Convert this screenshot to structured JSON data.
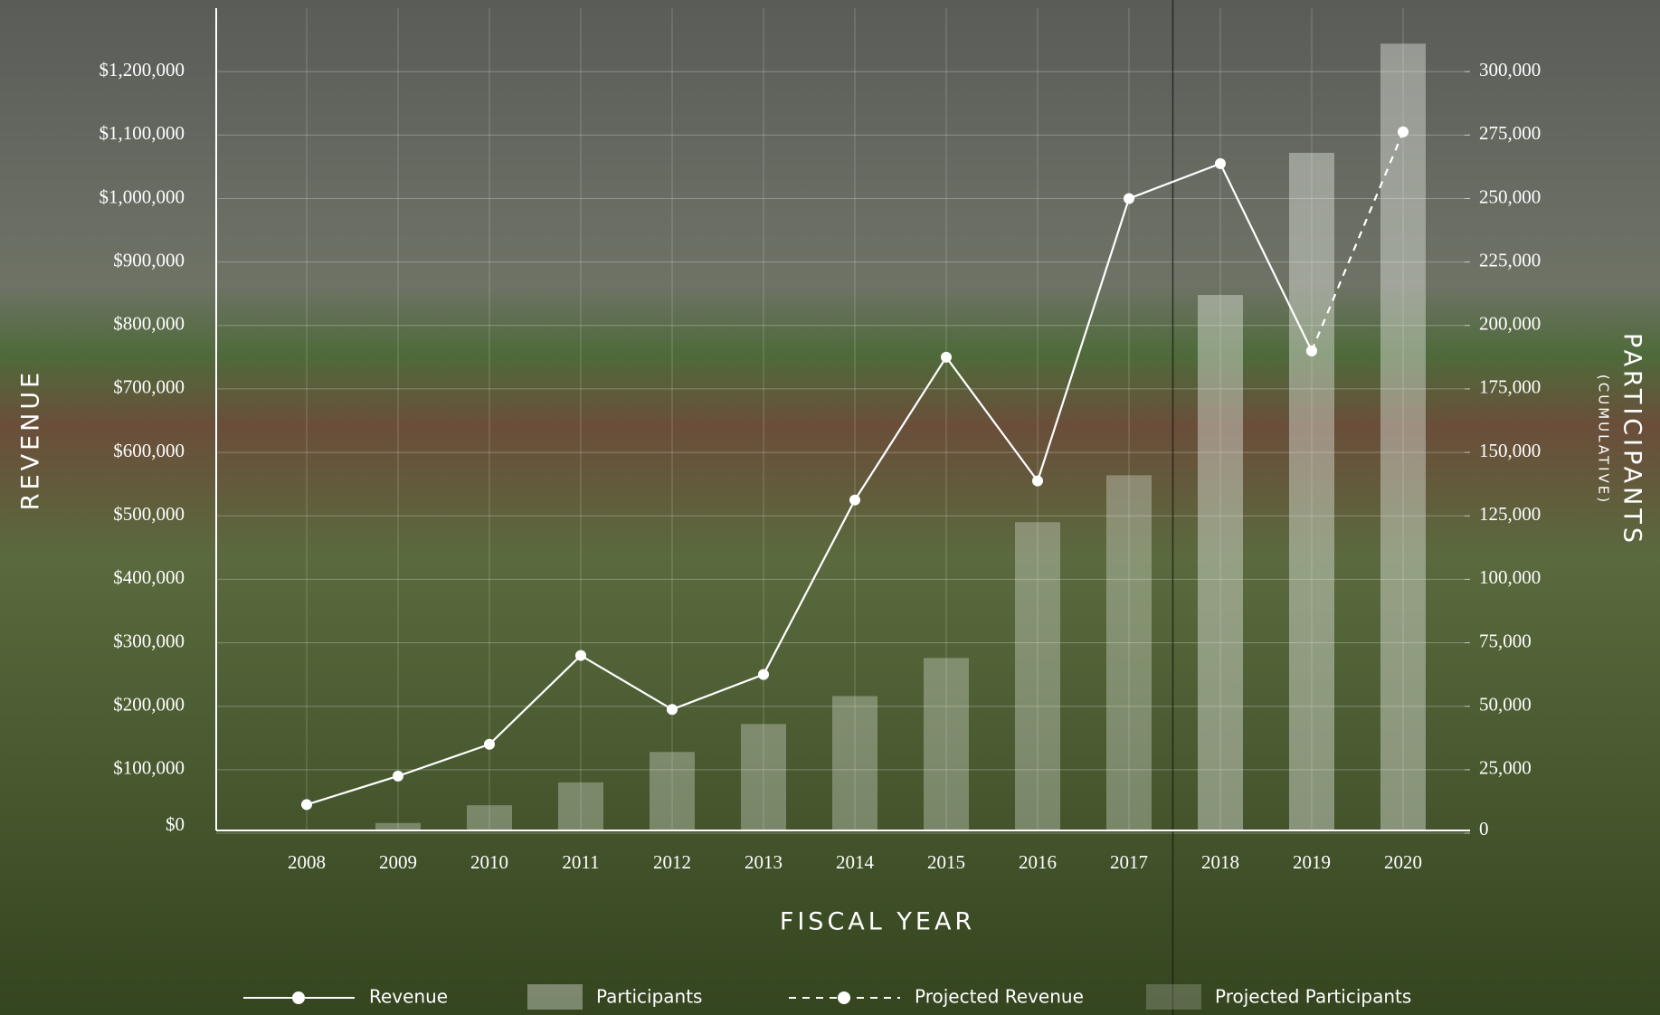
{
  "chart_data": {
    "type": "bar-line",
    "x_label": "FISCAL YEAR",
    "y_label": "REVENUE",
    "y2_label": "PARTICIPANTS",
    "y2_sublabel": "(CUMULATIVE)",
    "categories": [
      "2008",
      "2009",
      "2010",
      "2011",
      "2012",
      "2013",
      "2014",
      "2015",
      "2016",
      "2017",
      "2018",
      "2019",
      "2020"
    ],
    "series": [
      {
        "name": "Revenue",
        "type": "line",
        "color": "#ffffff",
        "values": [
          45000,
          90000,
          140000,
          280000,
          195000,
          250000,
          525000,
          750000,
          555000,
          1000000,
          1055000,
          760000,
          null
        ]
      },
      {
        "name": "Participants",
        "type": "bar",
        "axis": "y2",
        "color": "#e8ece4",
        "values": [
          null,
          4000,
          11000,
          20000,
          32000,
          43000,
          54000,
          69000,
          122500,
          141000,
          null,
          null,
          null
        ]
      },
      {
        "name": "Projected Revenue",
        "type": "line",
        "dashed": true,
        "color": "#ffffff",
        "values": [
          null,
          null,
          null,
          null,
          null,
          null,
          null,
          null,
          null,
          null,
          null,
          760000,
          1105000
        ]
      },
      {
        "name": "Projected Participants",
        "type": "bar",
        "axis": "y2",
        "color": "#e8ece4",
        "values": [
          null,
          null,
          null,
          null,
          null,
          null,
          null,
          null,
          null,
          null,
          212000,
          268000,
          311000
        ]
      }
    ],
    "ylim": [
      0,
      1300000
    ],
    "yticks": [
      {
        "value": 0,
        "label": "$0"
      },
      {
        "value": 100000,
        "label": "$100,000"
      },
      {
        "value": 200000,
        "label": "$200,000"
      },
      {
        "value": 300000,
        "label": "$300,000"
      },
      {
        "value": 400000,
        "label": "$400,000"
      },
      {
        "value": 500000,
        "label": "$500,000"
      },
      {
        "value": 600000,
        "label": "$600,000"
      },
      {
        "value": 700000,
        "label": "$700,000"
      },
      {
        "value": 800000,
        "label": "$800,000"
      },
      {
        "value": 900000,
        "label": "$900,000"
      },
      {
        "value": 1000000,
        "label": "$1,000,000"
      },
      {
        "value": 1100000,
        "label": "$1,100,000"
      },
      {
        "value": 1200000,
        "label": "$1,200,000"
      }
    ],
    "y2lim": [
      0,
      325000
    ],
    "y2ticks": [
      0,
      {
        "value": 25000,
        "label": "25,000"
      },
      {
        "value": 50000,
        "label": "50,000"
      },
      {
        "value": 75000,
        "label": "75,000"
      },
      {
        "value": 100000,
        "label": "100,000"
      },
      {
        "value": 125000,
        "label": "125,000"
      },
      {
        "value": 150000,
        "label": "150,000"
      },
      {
        "value": 175000,
        "label": "175,000"
      },
      {
        "value": 200000,
        "label": "200,000"
      },
      {
        "value": 225000,
        "label": "225,000"
      },
      {
        "value": 250000,
        "label": "250,000"
      },
      {
        "value": 275000,
        "label": "275,000"
      },
      {
        "value": 300000,
        "label": "300,000"
      }
    ],
    "grid": true
  }
}
